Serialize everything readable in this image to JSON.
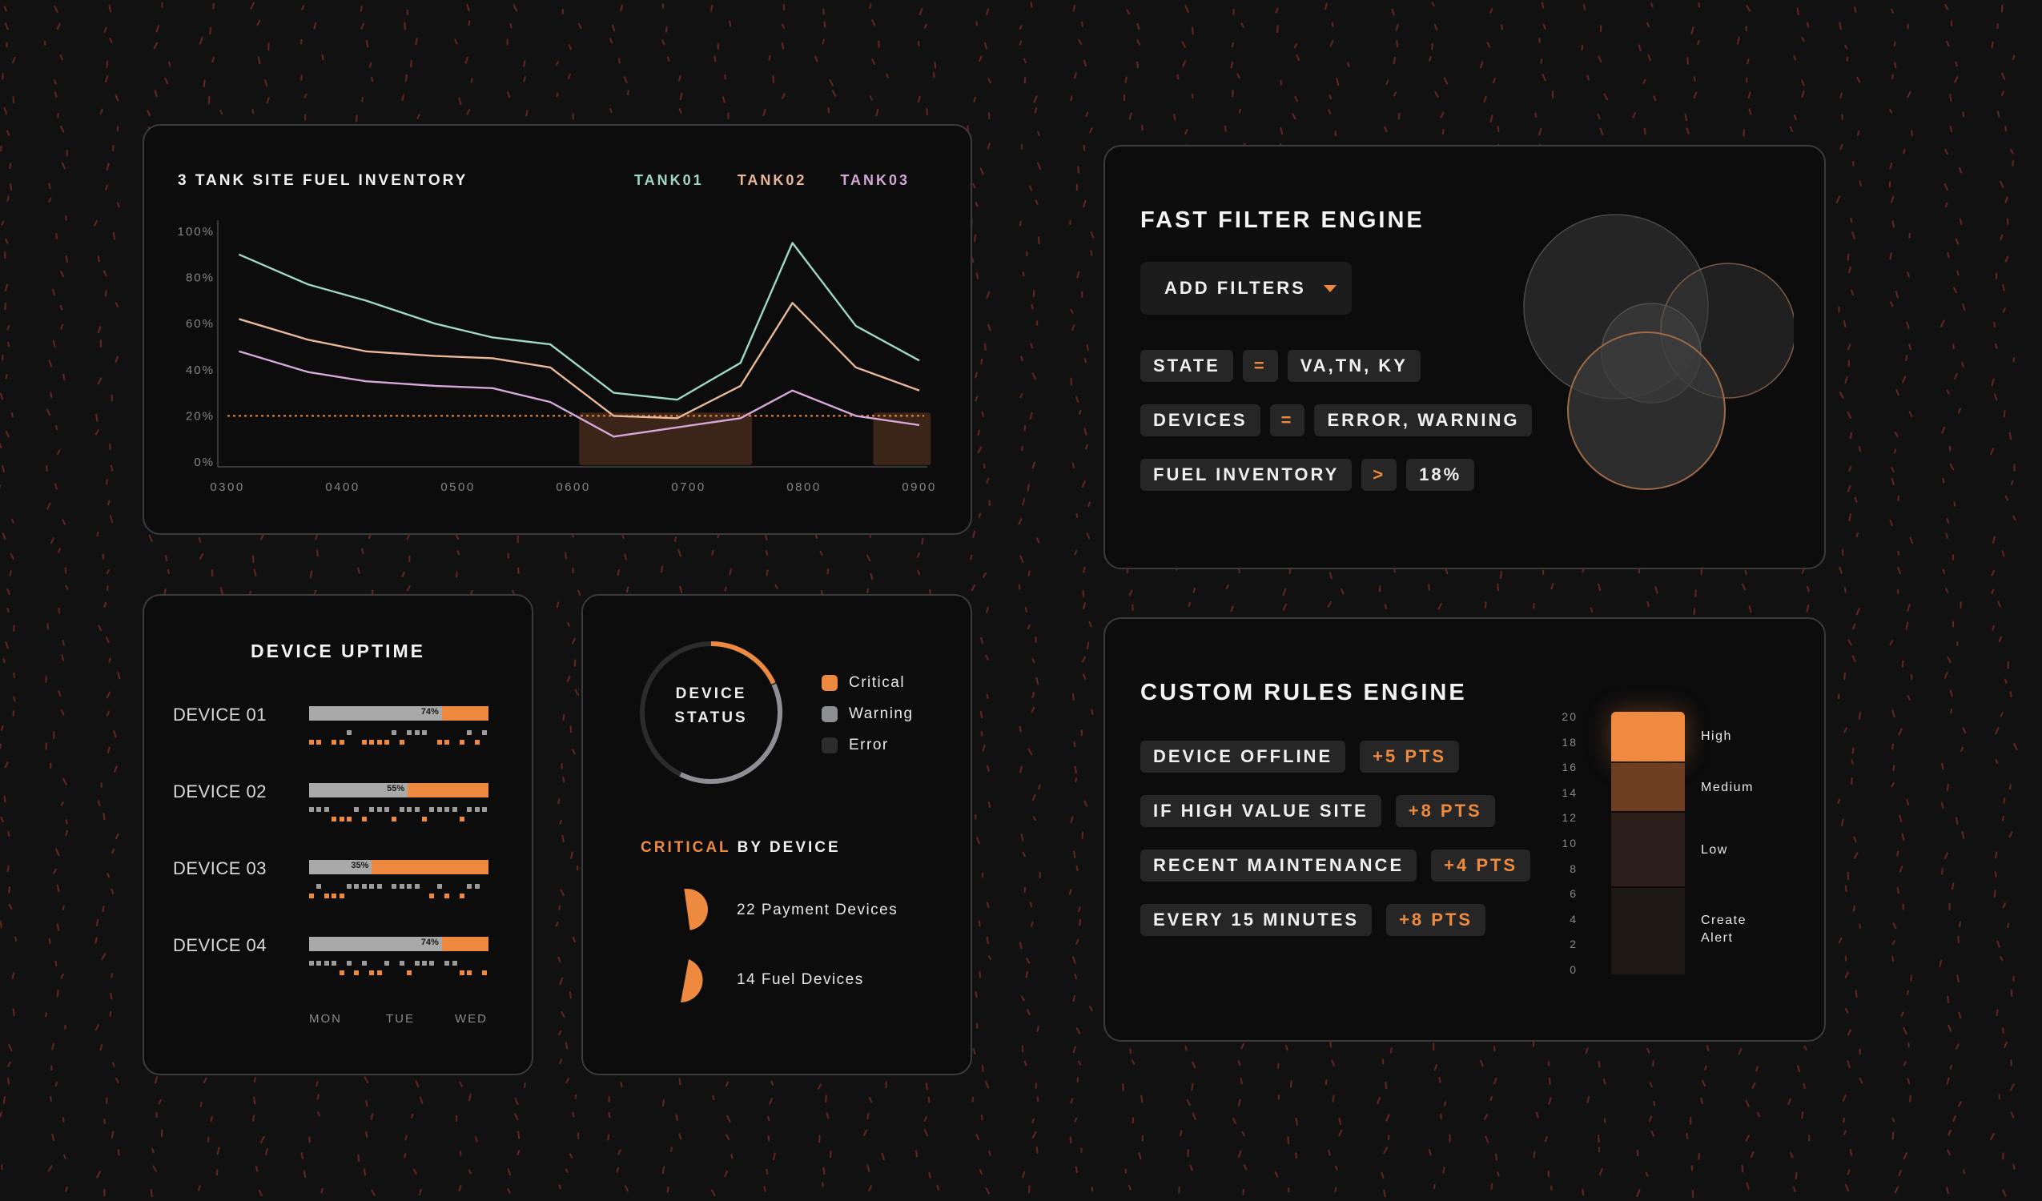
{
  "colors": {
    "accent": "#ee8a3f",
    "tank01": "#9fd8c4",
    "tank02": "#e9b898",
    "tank03": "#d6a7d8",
    "warning": "#8e8e95",
    "error": "#2c2c2c"
  },
  "fuel_card": {
    "title": "3 TANK SITE FUEL INVENTORY",
    "legend": [
      "TANK01",
      "TANK02",
      "TANK03"
    ]
  },
  "chart_data": {
    "type": "line",
    "title": "3 TANK SITE FUEL INVENTORY",
    "x_ticks": [
      "0300",
      "0400",
      "0500",
      "0600",
      "0700",
      "0800",
      "0900"
    ],
    "y_ticks": [
      "100%",
      "80%",
      "60%",
      "40%",
      "20%",
      "0%"
    ],
    "ylim": [
      0,
      100
    ],
    "xlim": [
      300,
      900
    ],
    "x": [
      310,
      370,
      420,
      480,
      530,
      580,
      635,
      690,
      745,
      790,
      845,
      900
    ],
    "series": [
      {
        "name": "TANK01",
        "values": [
          90,
          77,
          70,
          60,
          54,
          51,
          30,
          27,
          43,
          95,
          59,
          44
        ]
      },
      {
        "name": "TANK02",
        "values": [
          62,
          53,
          48,
          46,
          45,
          41,
          20,
          19,
          33,
          69,
          41,
          31
        ]
      },
      {
        "name": "TANK03",
        "values": [
          48,
          39,
          35,
          33,
          32,
          26,
          11,
          15,
          19,
          31,
          20,
          16
        ]
      }
    ],
    "threshold": 20,
    "highlight_ranges": [
      [
        605,
        755
      ],
      [
        860,
        910
      ]
    ],
    "grid": false
  },
  "filter_card": {
    "title": "FAST FILTER ENGINE",
    "add_filters_label": "ADD FILTERS",
    "filters": [
      {
        "field": "STATE",
        "op": "=",
        "value": "VA,TN, KY"
      },
      {
        "field": "DEVICES",
        "op": "=",
        "value": "ERROR, WARNING"
      },
      {
        "field": "FUEL INVENTORY",
        "op": ">",
        "value": "18%"
      }
    ]
  },
  "uptime_card": {
    "title": "DEVICE UPTIME",
    "devices": [
      {
        "label": "DEVICE 01",
        "uptime_pct": "74%",
        "uptime": 0.74
      },
      {
        "label": "DEVICE 02",
        "uptime_pct": "55%",
        "uptime": 0.55
      },
      {
        "label": "DEVICE 03",
        "uptime_pct": "35%",
        "uptime": 0.35
      },
      {
        "label": "DEVICE 04",
        "uptime_pct": "74%",
        "uptime": 0.74
      }
    ],
    "days": [
      "MON",
      "TUE",
      "WED"
    ]
  },
  "status_card": {
    "ring_line1": "DEVICE",
    "ring_line2": "STATUS",
    "critical_share": 0.18,
    "legend": [
      "Critical",
      "Warning",
      "Error"
    ],
    "critical_word": "CRITICAL",
    "by_device_word": " BY DEVICE",
    "payment_label": "22 Payment Devices",
    "fuel_label": "14 Fuel Devices"
  },
  "rules_card": {
    "title": "CUSTOM RULES ENGINE",
    "rules": [
      {
        "label": "DEVICE OFFLINE",
        "pts": "+5 PTS"
      },
      {
        "label": "IF HIGH VALUE SITE",
        "pts": "+8 PTS"
      },
      {
        "label": "RECENT MAINTENANCE",
        "pts": "+4 PTS"
      },
      {
        "label": "EVERY 15 MINUTES",
        "pts": "+8 PTS"
      }
    ],
    "scale_ticks": [
      "20",
      "18",
      "16",
      "14",
      "12",
      "10",
      "8",
      "6",
      "4",
      "2",
      "0"
    ],
    "level_high": "High",
    "level_medium": "Medium",
    "level_low": "Low",
    "level_alert_1": "Create",
    "level_alert_2": "Alert"
  }
}
